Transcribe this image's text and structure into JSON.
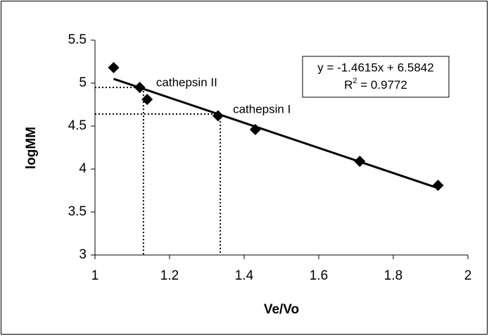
{
  "chart_data": {
    "type": "scatter",
    "x_label": "Ve/Vo",
    "y_label": "logMM",
    "x": [
      1.05,
      1.12,
      1.14,
      1.33,
      1.43,
      1.71,
      1.92
    ],
    "values": [
      5.18,
      4.95,
      4.81,
      4.62,
      4.46,
      4.09,
      3.81
    ],
    "color": "#000000",
    "xlim": [
      1,
      2
    ],
    "xticks": [
      1,
      1.2,
      1.4,
      1.6,
      1.8,
      2
    ],
    "ylim": [
      3,
      5.5
    ],
    "yticks": [
      3,
      3.5,
      4,
      4.5,
      5,
      5.5
    ],
    "trendline": {
      "slope": -1.4615,
      "intercept": 6.5842,
      "equation": "y = -1.4615x + 6.5842",
      "r_squared": {
        "base": "R",
        "sup": "2",
        "rest": " = 0.9772"
      }
    },
    "annotations": [
      {
        "text": "cathepsin II",
        "x": 1.13,
        "y": 4.95
      },
      {
        "text": "cathepsin I",
        "x": 1.336,
        "y": 4.64
      }
    ]
  }
}
